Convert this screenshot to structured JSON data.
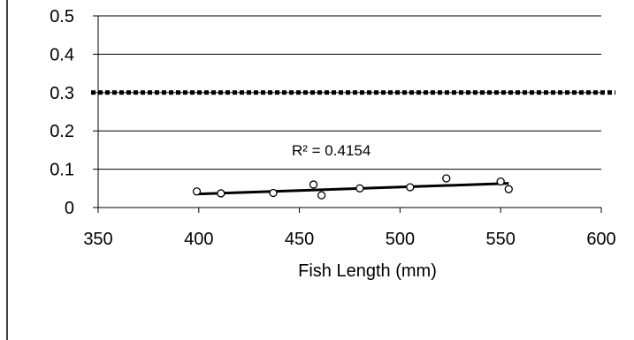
{
  "chart_data": {
    "type": "scatter",
    "title": "",
    "xlabel": "Fish Length (mm)",
    "ylabel": "",
    "xlim": [
      350,
      600
    ],
    "ylim": [
      0,
      0.5
    ],
    "x_ticks": [
      350,
      400,
      450,
      500,
      550,
      600
    ],
    "y_ticks": [
      0,
      0.1,
      0.2,
      0.3,
      0.4,
      0.5
    ],
    "x_tick_labels": [
      "350",
      "400",
      "450",
      "500",
      "550",
      "600"
    ],
    "y_tick_labels": [
      "0",
      "0.1",
      "0.2",
      "0.3",
      "0.4",
      "0.5"
    ],
    "grid": "horizontal",
    "series": [
      {
        "points": [
          {
            "x": 399,
            "y": 0.042
          },
          {
            "x": 411,
            "y": 0.037
          },
          {
            "x": 437,
            "y": 0.038
          },
          {
            "x": 457,
            "y": 0.06
          },
          {
            "x": 461,
            "y": 0.032
          },
          {
            "x": 480,
            "y": 0.05
          },
          {
            "x": 505,
            "y": 0.053
          },
          {
            "x": 523,
            "y": 0.076
          },
          {
            "x": 550,
            "y": 0.068
          },
          {
            "x": 554,
            "y": 0.048
          }
        ],
        "marker": "open-circle"
      }
    ],
    "trendline": {
      "type": "linear",
      "x": [
        398,
        554
      ],
      "y": [
        0.035,
        0.063
      ],
      "r_squared_label": "R² = 0.4154"
    },
    "reference_line": {
      "y": 0.3,
      "style": "dotted"
    }
  }
}
